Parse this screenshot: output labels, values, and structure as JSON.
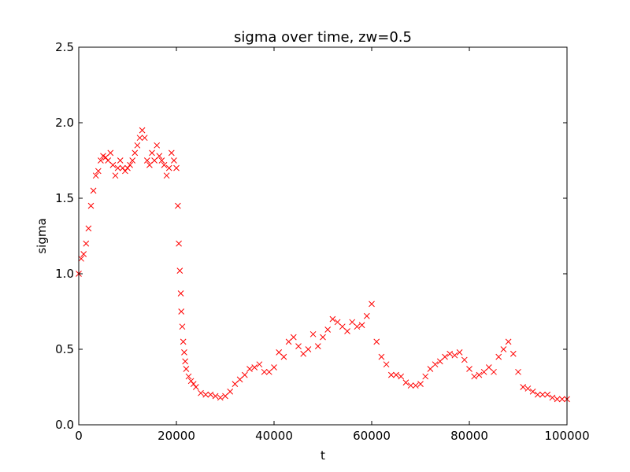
{
  "chart_data": {
    "type": "scatter",
    "title": "sigma over time, zw=0.5",
    "xlabel": "t",
    "ylabel": "sigma",
    "xlim": [
      0,
      100000
    ],
    "ylim": [
      0.0,
      2.5
    ],
    "xticks": [
      0,
      20000,
      40000,
      60000,
      80000,
      100000
    ],
    "xtick_labels": [
      "0",
      "20000",
      "40000",
      "60000",
      "80000",
      "100000"
    ],
    "yticks": [
      0.0,
      0.5,
      1.0,
      1.5,
      2.0,
      2.5
    ],
    "ytick_labels": [
      "0.0",
      "0.5",
      "1.0",
      "1.5",
      "2.0",
      "2.5"
    ],
    "grid": false,
    "marker": "x",
    "color": "#ff0000",
    "series": [
      {
        "name": "sigma",
        "x": [
          0,
          500,
          1000,
          1500,
          2000,
          2500,
          3000,
          3500,
          4000,
          4500,
          5000,
          5500,
          6000,
          6500,
          7000,
          7500,
          8000,
          8500,
          9000,
          9500,
          10000,
          10500,
          11000,
          11500,
          12000,
          12500,
          13000,
          13500,
          14000,
          14500,
          15000,
          15500,
          16000,
          16500,
          17000,
          17500,
          18000,
          18500,
          19000,
          19500,
          20000,
          20300,
          20500,
          20700,
          20900,
          21000,
          21200,
          21400,
          21600,
          21800,
          22000,
          22500,
          23000,
          23500,
          24000,
          25000,
          26000,
          27000,
          28000,
          29000,
          30000,
          31000,
          32000,
          33000,
          34000,
          35000,
          36000,
          37000,
          38000,
          39000,
          40000,
          41000,
          42000,
          43000,
          44000,
          45000,
          46000,
          47000,
          48000,
          49000,
          50000,
          51000,
          52000,
          53000,
          54000,
          55000,
          56000,
          57000,
          58000,
          59000,
          60000,
          61000,
          62000,
          63000,
          64000,
          65000,
          66000,
          67000,
          68000,
          69000,
          70000,
          71000,
          72000,
          73000,
          74000,
          75000,
          76000,
          77000,
          78000,
          79000,
          80000,
          81000,
          82000,
          83000,
          84000,
          85000,
          86000,
          87000,
          88000,
          89000,
          90000,
          91000,
          92000,
          93000,
          94000,
          95000,
          96000,
          97000,
          98000,
          99000,
          100000
        ],
        "y": [
          1.0,
          1.1,
          1.13,
          1.2,
          1.3,
          1.45,
          1.55,
          1.65,
          1.68,
          1.75,
          1.78,
          1.77,
          1.75,
          1.8,
          1.72,
          1.65,
          1.7,
          1.75,
          1.7,
          1.68,
          1.7,
          1.72,
          1.75,
          1.8,
          1.85,
          1.9,
          1.95,
          1.9,
          1.75,
          1.72,
          1.8,
          1.75,
          1.85,
          1.78,
          1.75,
          1.72,
          1.65,
          1.7,
          1.8,
          1.75,
          1.7,
          1.45,
          1.2,
          1.02,
          0.87,
          0.75,
          0.65,
          0.55,
          0.48,
          0.42,
          0.37,
          0.32,
          0.29,
          0.27,
          0.25,
          0.21,
          0.2,
          0.2,
          0.19,
          0.18,
          0.19,
          0.22,
          0.27,
          0.3,
          0.33,
          0.37,
          0.38,
          0.4,
          0.35,
          0.35,
          0.38,
          0.48,
          0.45,
          0.55,
          0.58,
          0.52,
          0.47,
          0.5,
          0.6,
          0.52,
          0.58,
          0.63,
          0.7,
          0.68,
          0.65,
          0.62,
          0.68,
          0.65,
          0.66,
          0.72,
          0.8,
          0.55,
          0.45,
          0.4,
          0.33,
          0.33,
          0.32,
          0.28,
          0.26,
          0.26,
          0.27,
          0.32,
          0.37,
          0.4,
          0.42,
          0.45,
          0.47,
          0.46,
          0.48,
          0.43,
          0.37,
          0.32,
          0.33,
          0.35,
          0.38,
          0.35,
          0.45,
          0.5,
          0.55,
          0.47,
          0.35,
          0.25,
          0.24,
          0.22,
          0.2,
          0.2,
          0.2,
          0.18,
          0.17,
          0.17,
          0.17
        ]
      }
    ]
  }
}
